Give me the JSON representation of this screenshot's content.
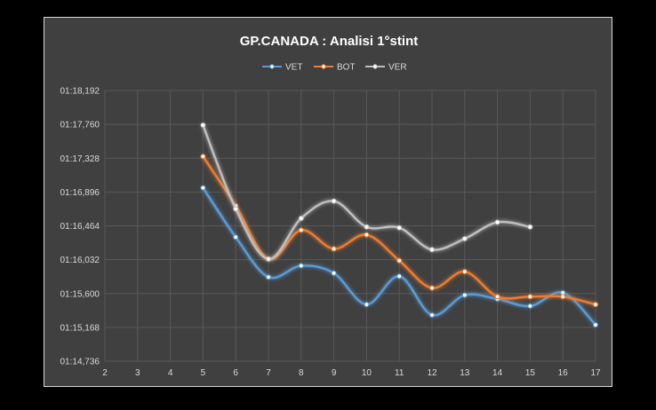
{
  "chart_data": {
    "type": "line",
    "title": "GP.CANADA : Analisi 1°stint",
    "xlabel": "",
    "ylabel": "",
    "x_ticks": [
      "2",
      "3",
      "4",
      "5",
      "6",
      "7",
      "8",
      "9",
      "10",
      "11",
      "12",
      "13",
      "14",
      "15",
      "16",
      "17"
    ],
    "xlim": [
      2,
      17
    ],
    "y_ticks": [
      "01:14,736",
      "01:15,168",
      "01:15,600",
      "01:16,032",
      "01:16,464",
      "01:16,896",
      "01:17,328",
      "01:17,760",
      "01:18,192"
    ],
    "ylim_seconds": [
      74.736,
      78.192
    ],
    "grid": "both",
    "legend_position": "top",
    "smoothed": true,
    "background": "#404040",
    "series": [
      {
        "name": "VET",
        "color": "#5b9bd5",
        "x": [
          5,
          6,
          7,
          8,
          9,
          10,
          11,
          12,
          13,
          14,
          15,
          16,
          17
        ],
        "values_seconds": [
          76.95,
          76.32,
          75.81,
          75.955,
          75.86,
          75.46,
          75.82,
          75.325,
          75.58,
          75.53,
          75.44,
          75.61,
          75.2
        ]
      },
      {
        "name": "BOT",
        "color": "#ed7d31",
        "x": [
          5,
          6,
          7,
          8,
          9,
          10,
          11,
          12,
          13,
          14,
          15,
          16,
          17
        ],
        "values_seconds": [
          77.35,
          76.72,
          76.04,
          76.41,
          76.17,
          76.35,
          76.02,
          75.67,
          75.88,
          75.56,
          75.56,
          75.56,
          75.46
        ]
      },
      {
        "name": "VER",
        "color": "#bfbfbf",
        "x": [
          5,
          6,
          7,
          8,
          9,
          10,
          11,
          12,
          13,
          14,
          15
        ],
        "values_seconds": [
          77.75,
          76.68,
          76.04,
          76.56,
          76.78,
          76.45,
          76.44,
          76.16,
          76.3,
          76.51,
          76.45
        ]
      }
    ]
  }
}
